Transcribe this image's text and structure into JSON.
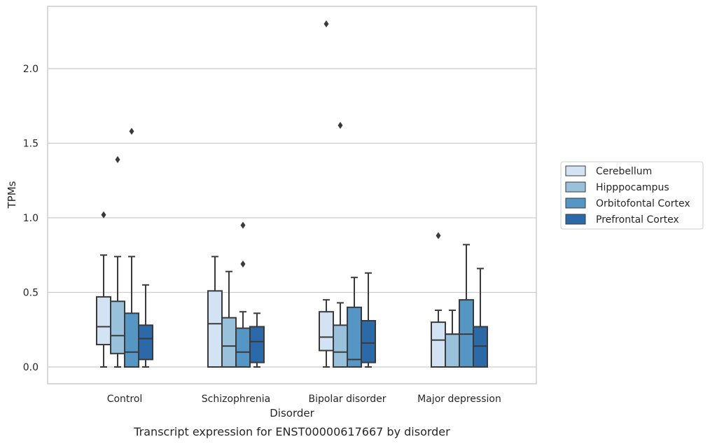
{
  "chart_data": {
    "type": "box",
    "title": "",
    "caption": "Transcript expression for ENST00000617667 by disorder",
    "xlabel": "Disorder",
    "ylabel": "TPMs",
    "categories": [
      "Control",
      "Schizophrenia",
      "Bipolar disorder",
      "Major depression"
    ],
    "ylim": [
      -0.11,
      2.42
    ],
    "yticks": [
      0.0,
      0.5,
      1.0,
      1.5,
      2.0
    ],
    "ytick_labels": [
      "0.0",
      "0.5",
      "1.0",
      "1.5",
      "2.0"
    ],
    "grid": "y",
    "legend_position": "right",
    "series": [
      {
        "name": "Cerebellum",
        "color": "#d4e3f3",
        "boxes": [
          {
            "whisker_low": 0.0,
            "q1": 0.15,
            "median": 0.27,
            "q3": 0.47,
            "whisker_high": 0.75,
            "outliers": [
              1.02
            ]
          },
          {
            "whisker_low": 0.0,
            "q1": 0.0,
            "median": 0.29,
            "q3": 0.51,
            "whisker_high": 0.74,
            "outliers": []
          },
          {
            "whisker_low": 0.0,
            "q1": 0.11,
            "median": 0.2,
            "q3": 0.37,
            "whisker_high": 0.45,
            "outliers": [
              2.3
            ]
          },
          {
            "whisker_low": 0.0,
            "q1": 0.0,
            "median": 0.18,
            "q3": 0.3,
            "whisker_high": 0.38,
            "outliers": [
              0.88
            ]
          }
        ]
      },
      {
        "name": "Hipppocampus",
        "color": "#99c1db",
        "boxes": [
          {
            "whisker_low": 0.0,
            "q1": 0.09,
            "median": 0.21,
            "q3": 0.44,
            "whisker_high": 0.74,
            "outliers": [
              1.39
            ]
          },
          {
            "whisker_low": 0.0,
            "q1": 0.0,
            "median": 0.14,
            "q3": 0.33,
            "whisker_high": 0.64,
            "outliers": []
          },
          {
            "whisker_low": 0.0,
            "q1": 0.0,
            "median": 0.1,
            "q3": 0.28,
            "whisker_high": 0.43,
            "outliers": [
              1.62
            ]
          },
          {
            "whisker_low": 0.0,
            "q1": 0.0,
            "median": 0.22,
            "q3": 0.22,
            "whisker_high": 0.38,
            "outliers": []
          }
        ]
      },
      {
        "name": "Orbitofontal Cortex",
        "color": "#5596c4",
        "boxes": [
          {
            "whisker_low": 0.0,
            "q1": 0.0,
            "median": 0.1,
            "q3": 0.36,
            "whisker_high": 0.74,
            "outliers": [
              1.58
            ]
          },
          {
            "whisker_low": 0.0,
            "q1": 0.0,
            "median": 0.1,
            "q3": 0.26,
            "whisker_high": 0.37,
            "outliers": [
              0.69,
              0.95
            ]
          },
          {
            "whisker_low": 0.0,
            "q1": 0.0,
            "median": 0.05,
            "q3": 0.4,
            "whisker_high": 0.6,
            "outliers": []
          },
          {
            "whisker_low": 0.0,
            "q1": 0.0,
            "median": 0.22,
            "q3": 0.45,
            "whisker_high": 0.82,
            "outliers": []
          }
        ]
      },
      {
        "name": "Prefrontal Cortex",
        "color": "#2c69a9",
        "boxes": [
          {
            "whisker_low": 0.0,
            "q1": 0.05,
            "median": 0.19,
            "q3": 0.28,
            "whisker_high": 0.55,
            "outliers": []
          },
          {
            "whisker_low": 0.0,
            "q1": 0.03,
            "median": 0.17,
            "q3": 0.27,
            "whisker_high": 0.36,
            "outliers": []
          },
          {
            "whisker_low": 0.0,
            "q1": 0.03,
            "median": 0.16,
            "q3": 0.31,
            "whisker_high": 0.63,
            "outliers": []
          },
          {
            "whisker_low": 0.0,
            "q1": 0.0,
            "median": 0.14,
            "q3": 0.27,
            "whisker_high": 0.66,
            "outliers": []
          }
        ]
      }
    ]
  }
}
